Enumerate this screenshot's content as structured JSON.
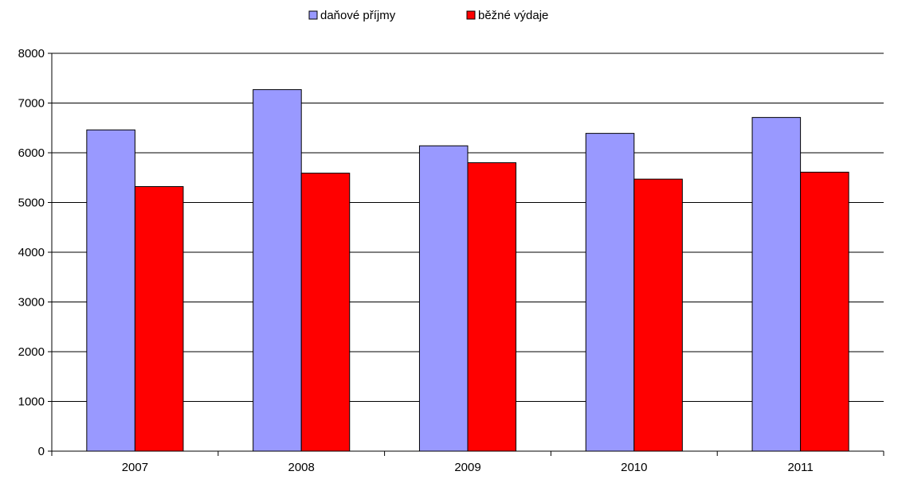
{
  "chart_data": {
    "type": "bar",
    "categories": [
      "2007",
      "2008",
      "2009",
      "2010",
      "2011"
    ],
    "series": [
      {
        "name": "daňové příjmy",
        "color": "#9999ff",
        "values": [
          6460,
          7270,
          6140,
          6390,
          6710
        ]
      },
      {
        "name": "běžné výdaje",
        "color": "#ff0000",
        "values": [
          5320,
          5590,
          5800,
          5470,
          5610
        ]
      }
    ],
    "yticks": [
      "0",
      "1000",
      "2000",
      "3000",
      "4000",
      "5000",
      "6000",
      "7000",
      "8000"
    ],
    "ylim": [
      0,
      8000
    ],
    "grid": true,
    "legend_position": "top-center"
  }
}
